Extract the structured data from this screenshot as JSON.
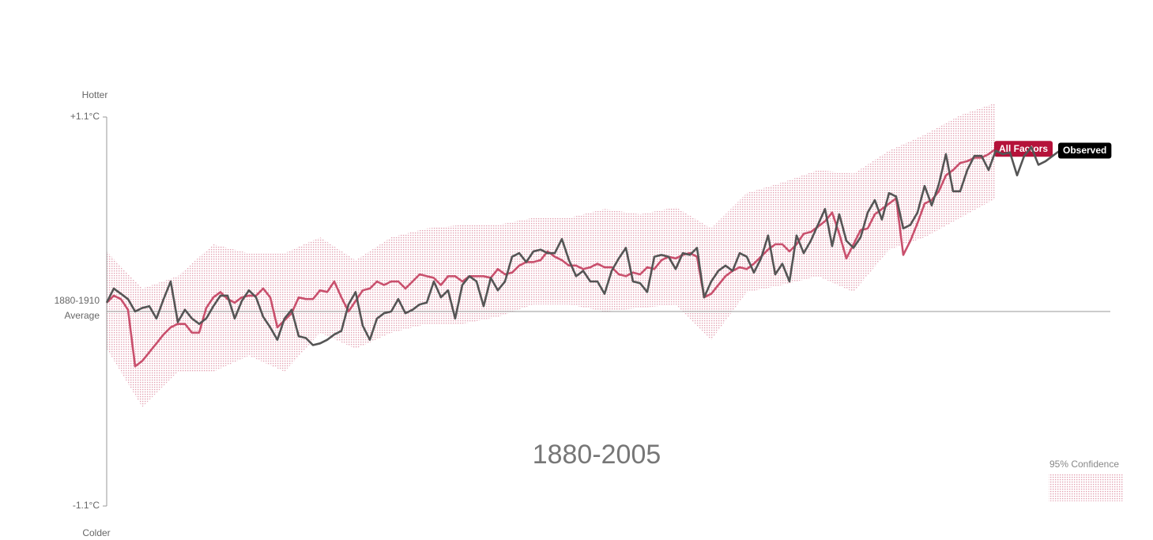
{
  "chart_data": {
    "type": "line",
    "title": "1880-2005",
    "y_top_label": "Hotter",
    "y_bottom_label": "Colder",
    "ylim": [
      -1.1,
      1.1
    ],
    "yticks": [
      {
        "value": 1.1,
        "label": "+1.1°C"
      },
      {
        "value": -1.1,
        "label": "-1.1°C"
      }
    ],
    "reference": {
      "value": 0,
      "label": [
        "1880-1910",
        "Average"
      ]
    },
    "xlim": [
      1880,
      2014
    ],
    "x": [
      1880,
      1881,
      1882,
      1883,
      1884,
      1885,
      1886,
      1887,
      1888,
      1889,
      1890,
      1891,
      1892,
      1893,
      1894,
      1895,
      1896,
      1897,
      1898,
      1899,
      1900,
      1901,
      1902,
      1903,
      1904,
      1905,
      1906,
      1907,
      1908,
      1909,
      1910,
      1911,
      1912,
      1913,
      1914,
      1915,
      1916,
      1917,
      1918,
      1919,
      1920,
      1921,
      1922,
      1923,
      1924,
      1925,
      1926,
      1927,
      1928,
      1929,
      1930,
      1931,
      1932,
      1933,
      1934,
      1935,
      1936,
      1937,
      1938,
      1939,
      1940,
      1941,
      1942,
      1943,
      1944,
      1945,
      1946,
      1947,
      1948,
      1949,
      1950,
      1951,
      1952,
      1953,
      1954,
      1955,
      1956,
      1957,
      1958,
      1959,
      1960,
      1961,
      1962,
      1963,
      1964,
      1965,
      1966,
      1967,
      1968,
      1969,
      1970,
      1971,
      1972,
      1973,
      1974,
      1975,
      1976,
      1977,
      1978,
      1979,
      1980,
      1981,
      1982,
      1983,
      1984,
      1985,
      1986,
      1987,
      1988,
      1989,
      1990,
      1991,
      1992,
      1993,
      1994,
      1995,
      1996,
      1997,
      1998,
      1999,
      2000,
      2001,
      2002,
      2003,
      2004,
      2005,
      2006,
      2007,
      2008,
      2009,
      2010,
      2011,
      2012,
      2013,
      2014
    ],
    "band": {
      "name": "95% Confidence",
      "color": "#e3a2b3",
      "x": [
        1880,
        1885,
        1890,
        1895,
        1900,
        1905,
        1910,
        1915,
        1920,
        1925,
        1930,
        1935,
        1940,
        1945,
        1950,
        1955,
        1960,
        1965,
        1970,
        1975,
        1980,
        1985,
        1990,
        1995,
        2000,
        2005
      ],
      "upper": [
        0.34,
        0.13,
        0.2,
        0.38,
        0.33,
        0.33,
        0.42,
        0.29,
        0.42,
        0.47,
        0.49,
        0.49,
        0.53,
        0.53,
        0.58,
        0.55,
        0.59,
        0.47,
        0.67,
        0.73,
        0.8,
        0.78,
        0.91,
        1.0,
        1.11,
        1.18
      ],
      "lower": [
        -0.21,
        -0.54,
        -0.34,
        -0.34,
        -0.25,
        -0.34,
        -0.12,
        -0.21,
        -0.12,
        -0.07,
        -0.07,
        -0.03,
        0.04,
        0.04,
        0.0,
        0.02,
        0.04,
        -0.16,
        0.11,
        0.15,
        0.2,
        0.11,
        0.35,
        0.42,
        0.53,
        0.64
      ]
    },
    "series": [
      {
        "name": "All Factors",
        "color": "#c9506d",
        "label_color": "#b5123a",
        "values": [
          0.05,
          0.09,
          0.07,
          0.01,
          -0.31,
          -0.28,
          -0.23,
          -0.18,
          -0.13,
          -0.09,
          -0.07,
          -0.07,
          -0.12,
          -0.12,
          0.02,
          0.08,
          0.11,
          0.07,
          0.05,
          0.08,
          0.09,
          0.09,
          0.13,
          0.08,
          -0.09,
          -0.05,
          -0.01,
          0.08,
          0.07,
          0.07,
          0.12,
          0.11,
          0.17,
          0.08,
          0.0,
          0.06,
          0.12,
          0.13,
          0.17,
          0.15,
          0.17,
          0.17,
          0.13,
          0.17,
          0.21,
          0.2,
          0.19,
          0.15,
          0.2,
          0.2,
          0.17,
          0.2,
          0.2,
          0.2,
          0.19,
          0.24,
          0.21,
          0.22,
          0.26,
          0.28,
          0.28,
          0.29,
          0.34,
          0.31,
          0.29,
          0.26,
          0.26,
          0.24,
          0.25,
          0.27,
          0.25,
          0.25,
          0.21,
          0.2,
          0.22,
          0.21,
          0.25,
          0.24,
          0.29,
          0.31,
          0.3,
          0.32,
          0.33,
          0.31,
          0.08,
          0.1,
          0.15,
          0.2,
          0.23,
          0.25,
          0.24,
          0.27,
          0.31,
          0.35,
          0.38,
          0.38,
          0.34,
          0.38,
          0.44,
          0.45,
          0.48,
          0.51,
          0.56,
          0.44,
          0.3,
          0.38,
          0.46,
          0.47,
          0.55,
          0.58,
          0.61,
          0.64,
          0.32,
          0.4,
          0.5,
          0.61,
          0.63,
          0.68,
          0.77,
          0.8,
          0.84,
          0.85,
          0.87,
          0.87,
          0.89,
          0.92,
          null,
          null,
          null,
          null,
          null,
          null,
          null,
          null,
          null
        ]
      },
      {
        "name": "Observed",
        "color": "#555555",
        "label_color": "#000000",
        "values": [
          0.05,
          0.13,
          0.1,
          0.07,
          0.0,
          0.02,
          0.03,
          -0.04,
          0.07,
          0.17,
          -0.06,
          0.01,
          -0.04,
          -0.07,
          -0.04,
          0.03,
          0.09,
          0.09,
          -0.04,
          0.06,
          0.12,
          0.08,
          -0.03,
          -0.09,
          -0.16,
          -0.04,
          0.01,
          -0.14,
          -0.15,
          -0.19,
          -0.18,
          -0.16,
          -0.13,
          -0.11,
          0.04,
          0.11,
          -0.08,
          -0.16,
          -0.04,
          -0.01,
          0.0,
          0.07,
          -0.01,
          0.01,
          0.04,
          0.05,
          0.17,
          0.08,
          0.12,
          -0.04,
          0.15,
          0.2,
          0.17,
          0.03,
          0.19,
          0.12,
          0.17,
          0.31,
          0.33,
          0.28,
          0.34,
          0.35,
          0.33,
          0.33,
          0.41,
          0.29,
          0.2,
          0.23,
          0.17,
          0.17,
          0.1,
          0.23,
          0.3,
          0.36,
          0.17,
          0.16,
          0.11,
          0.31,
          0.32,
          0.31,
          0.24,
          0.33,
          0.32,
          0.36,
          0.08,
          0.17,
          0.23,
          0.26,
          0.23,
          0.33,
          0.31,
          0.22,
          0.3,
          0.43,
          0.21,
          0.27,
          0.17,
          0.43,
          0.33,
          0.4,
          0.49,
          0.58,
          0.37,
          0.55,
          0.4,
          0.36,
          0.42,
          0.56,
          0.63,
          0.52,
          0.67,
          0.65,
          0.47,
          0.49,
          0.56,
          0.71,
          0.6,
          0.72,
          0.89,
          0.68,
          0.68,
          0.8,
          0.88,
          0.88,
          0.8,
          0.91,
          0.89,
          0.9,
          0.77,
          0.88,
          0.93,
          0.83,
          0.85,
          0.88,
          0.91
        ]
      }
    ]
  }
}
